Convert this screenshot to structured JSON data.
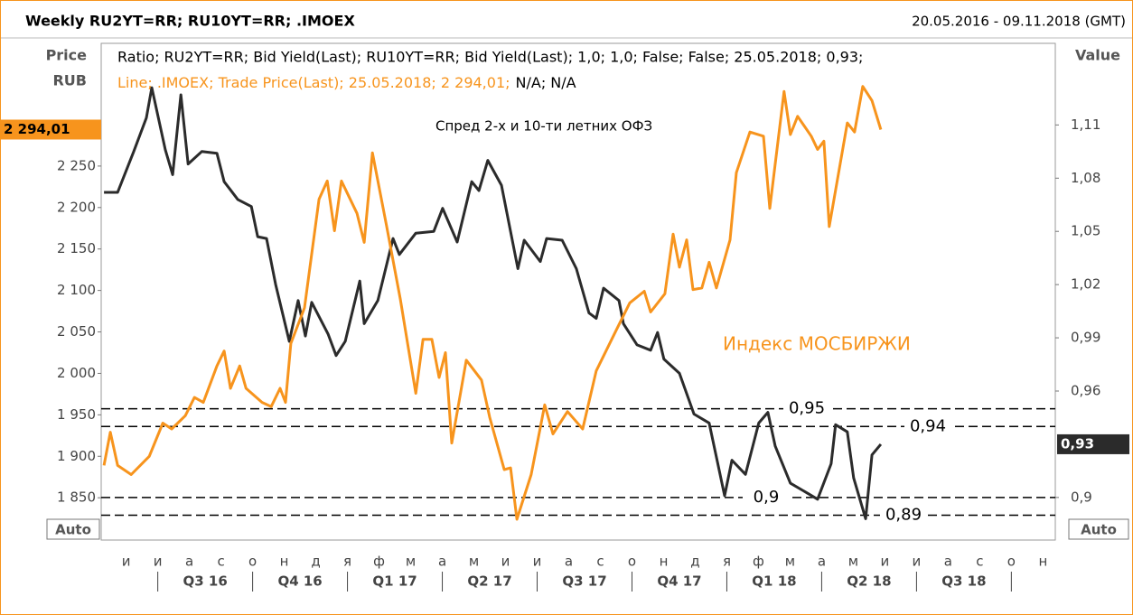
{
  "chart_data": {
    "type": "line",
    "title": "Weekly RU2YT=RR; RU10YT=RR; .IMOEX",
    "date_range": "20.05.2016 - 09.11.2018 (GMT)",
    "y_label": [
      "Price",
      "RUB"
    ],
    "y2_label": "Value",
    "buttons": [
      "Auto",
      "Auto"
    ],
    "annotations_text": [
      "Спред 2-х и 10-ти летних ОФЗ",
      "Индекс МОСБИРЖИ"
    ],
    "legend_suffix": "N/A; N/A",
    "categories": [
      "и",
      "и",
      "а",
      "с",
      "о",
      "н",
      "д",
      "я",
      "ф",
      "м",
      "а",
      "м",
      "и",
      "и",
      "а",
      "с",
      "о",
      "н",
      "д",
      "я",
      "ф",
      "м",
      "а",
      "м",
      "и",
      "и",
      "а",
      "с",
      "о",
      "н"
    ],
    "quarters": [
      "Q3 16",
      "Q4 16",
      "Q1 17",
      "Q2 17",
      "Q3 17",
      "Q4 17",
      "Q1 18",
      "Q2 18",
      "Q3 18"
    ],
    "xlim": [
      -0.29,
      29.89
    ],
    "ylim": [
      1799,
      2398
    ],
    "yticks": [
      {
        "value": 1850,
        "label": "1 850"
      },
      {
        "value": 1900,
        "label": "1 900"
      },
      {
        "value": 1950,
        "label": "1 950"
      },
      {
        "value": 2000,
        "label": "2 000"
      },
      {
        "value": 2050,
        "label": "2 050"
      },
      {
        "value": 2100,
        "label": "2 100"
      },
      {
        "value": 2150,
        "label": "2 150"
      },
      {
        "value": 2200,
        "label": "2 200"
      },
      {
        "value": 2250,
        "label": "2 250"
      }
    ],
    "y2lim": [
      0.876,
      1.156
    ],
    "y2ticks": [
      {
        "value": 0.9,
        "label": "0,9"
      },
      {
        "value": 0.96,
        "label": "0,96"
      },
      {
        "value": 0.99,
        "label": "0,99"
      },
      {
        "value": 1.02,
        "label": "1,02"
      },
      {
        "value": 1.05,
        "label": "1,05"
      },
      {
        "value": 1.08,
        "label": "1,08"
      },
      {
        "value": 1.11,
        "label": "1,11"
      }
    ],
    "hlines": [
      {
        "value": 0.95,
        "label": "0,95"
      },
      {
        "value": 0.94,
        "label": "0,94"
      },
      {
        "value": 0.9,
        "label": "0,9"
      },
      {
        "value": 0.89,
        "label": "0,89"
      }
    ],
    "series": [
      {
        "name": "Ratio; RU2YT=RR; Bid Yield(Last); RU10YT=RR; Bid Yield(Last);  1,0; 1,0; False; False; 25.05.2018; 0,93;",
        "color": "#2b2b2b",
        "axis": "y2",
        "current": {
          "value": 0.93,
          "label": "0,93"
        },
        "x": [
          -0.2,
          0.23,
          0.74,
          1.14,
          1.31,
          1.74,
          1.97,
          2.23,
          2.46,
          2.89,
          3.37,
          3.6,
          4.03,
          4.46,
          4.66,
          4.94,
          5.23,
          5.66,
          5.94,
          6.17,
          6.37,
          6.89,
          7.14,
          7.43,
          7.89,
          8.03,
          8.46,
          8.94,
          9.14,
          9.66,
          10.23,
          10.51,
          10.97,
          11.43,
          11.66,
          11.94,
          12.37,
          12.89,
          13.09,
          13.6,
          13.8,
          14.29,
          14.74,
          15.14,
          15.37,
          15.6,
          16.09,
          16.23,
          16.66,
          17.09,
          17.31,
          17.51,
          18.0,
          18.46,
          18.94,
          19.43,
          19.66,
          20.09,
          20.51,
          20.8,
          21.03,
          21.51,
          22.09,
          22.37,
          22.8,
          22.94,
          23.31,
          23.51,
          23.89,
          24.09,
          24.37
        ],
        "values": [
          1.072,
          1.072,
          1.095,
          1.114,
          1.131,
          1.096,
          1.082,
          1.127,
          1.088,
          1.095,
          1.094,
          1.078,
          1.068,
          1.064,
          1.047,
          1.046,
          1.02,
          0.988,
          1.011,
          0.991,
          1.01,
          0.992,
          0.98,
          0.988,
          1.022,
          0.998,
          1.011,
          1.046,
          1.037,
          1.049,
          1.05,
          1.063,
          1.044,
          1.078,
          1.073,
          1.09,
          1.076,
          1.029,
          1.045,
          1.033,
          1.046,
          1.045,
          1.029,
          1.004,
          1.001,
          1.018,
          1.011,
          0.998,
          0.986,
          0.983,
          0.993,
          0.978,
          0.97,
          0.947,
          0.942,
          0.901,
          0.921,
          0.913,
          0.942,
          0.948,
          0.929,
          0.908,
          0.902,
          0.899,
          0.919,
          0.941,
          0.937,
          0.911,
          0.888,
          0.924,
          0.93
        ]
      },
      {
        "name": "Line; .IMOEX; Trade Price(Last); 25.05.2018; 2 294,01;",
        "color": "#f7941d",
        "axis": "y",
        "current": {
          "value": 2294.01,
          "label": "2 294,01"
        },
        "x": [
          -0.2,
          0,
          0.23,
          0.66,
          1.23,
          1.66,
          1.94,
          2.37,
          2.66,
          2.94,
          3.37,
          3.6,
          3.8,
          4.09,
          4.29,
          4.8,
          5.09,
          5.37,
          5.54,
          5.71,
          6.14,
          6.6,
          6.86,
          7.09,
          7.31,
          7.8,
          8.03,
          8.29,
          8.74,
          9.17,
          9.66,
          9.89,
          10.17,
          10.4,
          10.6,
          10.8,
          11.26,
          11.74,
          12.0,
          12.46,
          12.66,
          12.86,
          13.31,
          13.74,
          14.0,
          14.46,
          14.94,
          15.37,
          16.0,
          16.43,
          16.89,
          17.09,
          17.54,
          17.8,
          18.0,
          18.23,
          18.43,
          18.71,
          18.94,
          19.17,
          19.6,
          19.8,
          20.23,
          20.66,
          20.86,
          21.31,
          21.51,
          21.74,
          22.17,
          22.37,
          22.57,
          22.74,
          23.31,
          23.54,
          23.8,
          24.09,
          24.37
        ],
        "values": [
          1889,
          1929,
          1889,
          1878,
          1900,
          1940,
          1933,
          1949,
          1971,
          1965,
          2009,
          2027,
          1982,
          2009,
          1982,
          1965,
          1960,
          1982,
          1965,
          2036,
          2079,
          2210,
          2232,
          2172,
          2232,
          2193,
          2158,
          2266,
          2177,
          2090,
          1976,
          2041,
          2041,
          1995,
          2025,
          1916,
          2016,
          1992,
          1947,
          1884,
          1886,
          1824,
          1878,
          1962,
          1927,
          1954,
          1933,
          2003,
          2052,
          2085,
          2099,
          2074,
          2096,
          2168,
          2128,
          2161,
          2101,
          2103,
          2134,
          2103,
          2161,
          2242,
          2291,
          2286,
          2199,
          2340,
          2288,
          2310,
          2286,
          2270,
          2280,
          2177,
          2302,
          2291,
          2346,
          2329,
          2294.01
        ]
      }
    ]
  }
}
